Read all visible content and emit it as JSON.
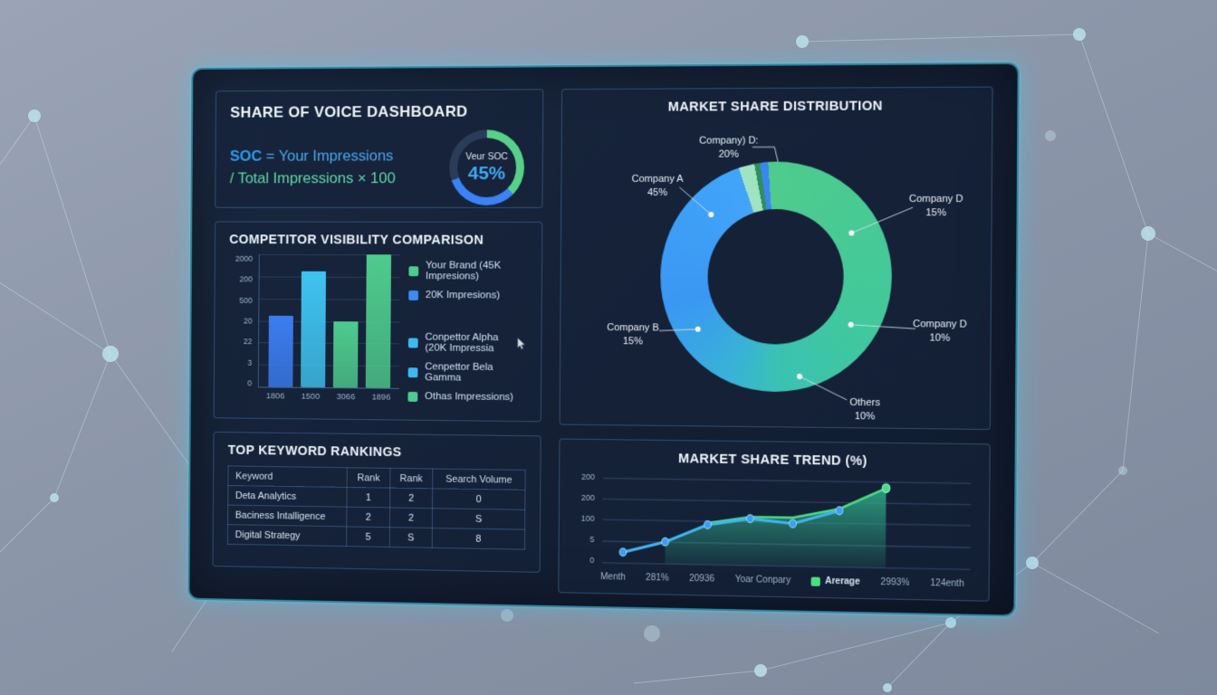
{
  "soc_panel": {
    "title": "SHARE OF VOICE DASHBOARD",
    "formula_term": "SOC",
    "formula_rest": " = Your Impressions",
    "formula_line2": "/ Total Impressions × 100",
    "gauge": {
      "label": "Veur SOC",
      "value": "45%",
      "arc_green": "#57d189",
      "arc_blue": "#3b82f6",
      "arc_track": "#2b3c5a"
    }
  },
  "bar_panel": {
    "title": "COMPETITOR VISIBILITY COMPARISON",
    "legend_group1": [
      {
        "color": "#4ecb8d",
        "label": "Your Brand (45K Impresions)"
      },
      {
        "color": "#3b8df0",
        "label": "20K Impresions)"
      }
    ],
    "legend_group2": [
      {
        "color": "#3eb9f0",
        "label": "Conpettor Alpha (20K Impressia"
      },
      {
        "color": "#3eb9f0",
        "label": "Cenpettor Bela Gamma"
      },
      {
        "color": "#4ecb8d",
        "label": "Othas Impressions)"
      }
    ]
  },
  "table_panel": {
    "title": "TOP KEYWORD RANKINGS",
    "headers": [
      "Keyword",
      "Rank",
      "Rank",
      "Search Volume"
    ],
    "rows": [
      [
        "Deta Analytics",
        "1",
        "2",
        "0"
      ],
      [
        "Baciness Intalligence",
        "2",
        "2",
        "S"
      ],
      [
        "Digital Strategy",
        "5",
        "S",
        "8"
      ]
    ]
  },
  "donut_panel": {
    "title": "MARKET SHARE DISTRIBUTION",
    "labels": [
      {
        "name": "Company) D:",
        "value": "20%"
      },
      {
        "name": "Company A",
        "value": "45%"
      },
      {
        "name": "Company D",
        "value": "15%"
      },
      {
        "name": "Company B",
        "value": "15%"
      },
      {
        "name": "Company D",
        "value": "10%"
      },
      {
        "name": "Others",
        "value": "10%"
      }
    ]
  },
  "trend_panel": {
    "title": "MARKET SHARE TREND (%)",
    "legend_label": "Arerage"
  },
  "chart_data": [
    {
      "type": "bar",
      "title": "COMPETITOR VISIBILITY COMPARISON",
      "categories": [
        "1806",
        "1500",
        "3066",
        "1896"
      ],
      "values": [
        54,
        87,
        50,
        100
      ],
      "values_note": "bar heights as percent of plot height; source axis text is garbled",
      "y_tick_labels": [
        "2000",
        "200",
        "500",
        "20",
        "22",
        "3",
        "0"
      ],
      "colors": [
        "#3b7df0",
        "#3ec3f0",
        "#4ecb8d",
        "#4ecb8d"
      ],
      "grid": true,
      "legend_position": "right"
    },
    {
      "type": "pie",
      "title": "MARKET SHARE DISTRIBUTION",
      "slices": [
        {
          "label": "Company A",
          "value": 45,
          "color": "#3b9af8"
        },
        {
          "label": "Company) D:",
          "value": 20,
          "color": "#9fe3c3"
        },
        {
          "label": "Company D",
          "value": 15,
          "color": "#4ecb8d"
        },
        {
          "label": "Company B",
          "value": 15,
          "color": "#38aee0"
        },
        {
          "label": "Company D",
          "value": 10,
          "color": "#3fc6a5"
        },
        {
          "label": "Others",
          "value": 10,
          "color": "#3cc3b4"
        }
      ],
      "conic_stops": [
        [
          "#4ecb8d",
          0
        ],
        [
          "#41c89c",
          120
        ],
        [
          "#3ac2b2",
          178
        ],
        [
          "#38b2d8",
          205
        ],
        [
          "#3a97f3",
          255
        ],
        [
          "#41a4f8",
          335
        ],
        [
          "#41a4f8",
          341
        ],
        [
          "#9fe3c3",
          341
        ],
        [
          "#9fe3c3",
          349
        ],
        [
          "#2e8f5b",
          349
        ],
        [
          "#2e8f5b",
          352
        ],
        [
          "#3b86f0",
          352
        ],
        [
          "#3b86f0",
          356
        ],
        [
          "#4ecb8d",
          356
        ]
      ]
    },
    {
      "type": "line",
      "title": "MARKET SHARE TREND (%)",
      "y_tick_labels": [
        "200",
        "200",
        "100",
        "5",
        "0"
      ],
      "x_tick_labels": [
        "Menth",
        "281%",
        "20936",
        "Yoar Conpary",
        "2993%",
        "124enth"
      ],
      "series": [
        {
          "name": "Yoar Conpary",
          "color": "#41b3f2",
          "points_pct": [
            [
              4,
              13
            ],
            [
              16,
              26
            ],
            [
              28,
              47
            ],
            [
              40,
              55
            ],
            [
              52,
              50
            ],
            [
              65,
              66
            ]
          ]
        },
        {
          "name": "Arerage",
          "color": "#4ade80",
          "points_pct": [
            [
              28,
              49
            ],
            [
              40,
              57
            ],
            [
              52,
              57
            ],
            [
              65,
              68
            ],
            [
              78,
              93
            ]
          ]
        }
      ],
      "area_color": "#2fae89",
      "grid": true
    }
  ]
}
